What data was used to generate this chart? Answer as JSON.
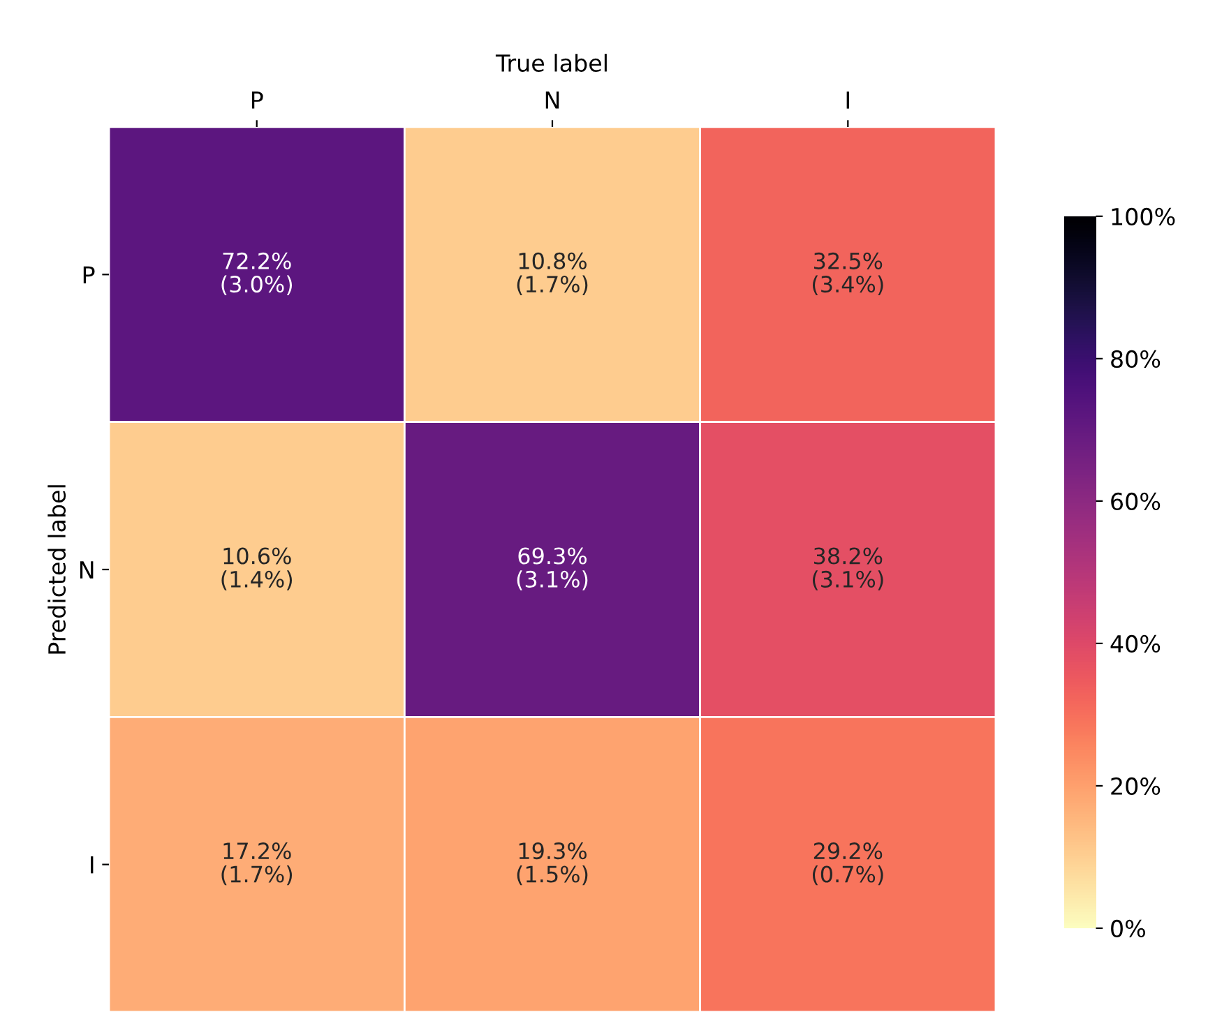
{
  "chart_data": {
    "type": "heatmap",
    "xlabel": "True label",
    "ylabel": "Predicted label",
    "categories": [
      "P",
      "N",
      "I"
    ],
    "y_categories": [
      "P",
      "N",
      "I"
    ],
    "cells": [
      [
        72.2,
        10.8,
        32.5
      ],
      [
        10.6,
        69.3,
        38.2
      ],
      [
        17.2,
        19.3,
        29.2
      ]
    ],
    "cell_labels": [
      [
        "72.2%\n(3.0%)",
        "10.8%\n(1.7%)",
        "32.5%\n(3.4%)"
      ],
      [
        "10.6%\n(1.4%)",
        "69.3%\n(3.1%)",
        "38.2%\n(3.1%)"
      ],
      [
        "17.2%\n(1.7%)",
        "19.3%\n(1.5%)",
        "29.2%\n(0.7%)"
      ]
    ],
    "clim": [
      0,
      100
    ],
    "cticks": [
      {
        "value": 0,
        "label": "0%"
      },
      {
        "value": 20,
        "label": "20%"
      },
      {
        "value": 40,
        "label": "40%"
      },
      {
        "value": 60,
        "label": "60%"
      },
      {
        "value": 80,
        "label": "80%"
      },
      {
        "value": 100,
        "label": "100%"
      }
    ]
  }
}
